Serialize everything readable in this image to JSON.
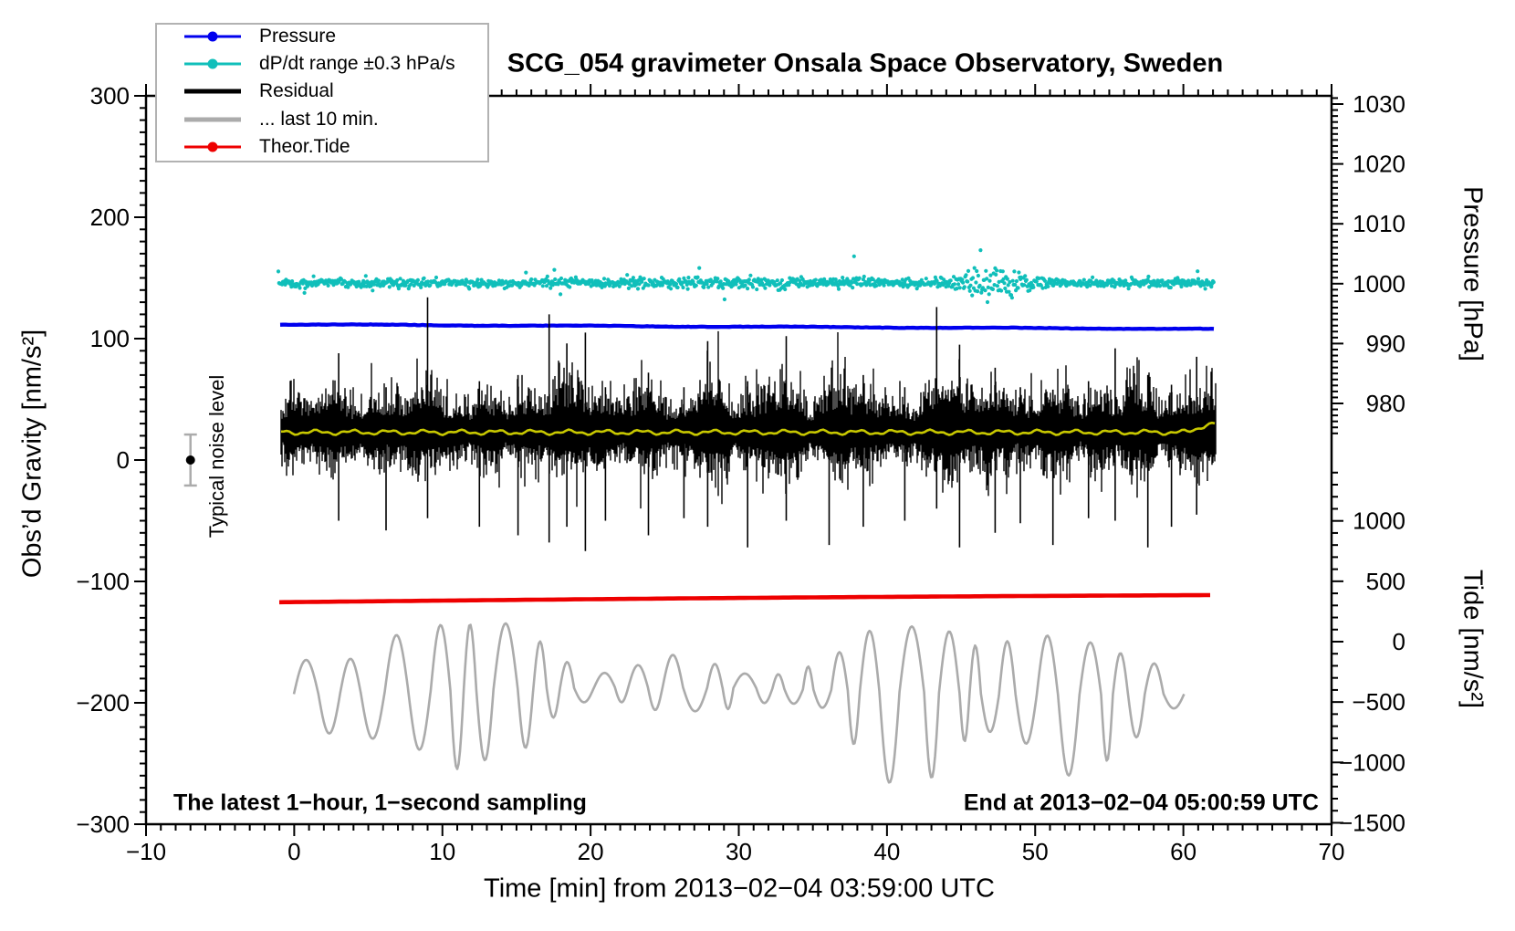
{
  "title": "SCG_054 gravimeter Onsala Space Observatory, Sweden",
  "notes": {
    "sampling": "The latest 1−hour, 1−second sampling",
    "end": "End at 2013−02−04 05:00:59 UTC",
    "noise": "Typical noise level"
  },
  "legend": {
    "items": [
      {
        "label": "Pressure",
        "color": "#0000EE",
        "marker": "line-dot"
      },
      {
        "label": "dP/dt range ±0.3 hPa/s",
        "color": "#10BFBA",
        "marker": "line-dot"
      },
      {
        "label": "Residual",
        "color": "#000000",
        "marker": "thick-line"
      },
      {
        "label": "... last 10 min.",
        "color": "#ABABAB",
        "marker": "thick-line"
      },
      {
        "label": "Theor.Tide",
        "color": "#EE0000",
        "marker": "line-dot"
      }
    ]
  },
  "chart_data": {
    "type": "line",
    "title": "SCG_054 gravimeter Onsala Space Observatory, Sweden",
    "x_axis": {
      "label": "Time [min] from 2013−02−04 03:59:00 UTC",
      "min": -10,
      "max": 70,
      "major_ticks": [
        -10,
        0,
        10,
        20,
        30,
        40,
        50,
        60,
        70
      ],
      "minor_step": 1
    },
    "left_axis": {
      "label": "Obs’d Gravity [nm/s²]",
      "min": -300,
      "max": 300,
      "major_ticks": [
        300,
        200,
        100,
        0,
        -100,
        -200,
        -300
      ],
      "minor_step": 10
    },
    "right_pressure_axis": {
      "label": "Pressure [hPa]",
      "major_ticks": [
        1030,
        1020,
        1010,
        1000,
        990,
        980
      ],
      "minor_step": 1
    },
    "right_tide_axis": {
      "label": "Tide [nm/s²]",
      "major_ticks": [
        1000,
        500,
        0,
        -500,
        -1000,
        -1500
      ],
      "minor_step": 100
    },
    "grid": false,
    "legend_position": "top-left",
    "series": [
      {
        "name": "Pressure",
        "axis": "pressure_hPa",
        "color": "#0000EE",
        "style": "line",
        "points": [
          {
            "t_min": 0,
            "hPa": 993.2
          },
          {
            "t_min": 31,
            "hPa": 992.9
          },
          {
            "t_min": 62,
            "hPa": 992.4
          }
        ]
      },
      {
        "name": "dP/dt range ±0.3 hPa/s",
        "axis": "pressure_hPa",
        "color": "#10BFBA",
        "style": "scatter",
        "center_hPa": 1000.1,
        "typical_spread_hPa": 0.4,
        "burst": {
          "t_min_range": [
            44.5,
            50.5
          ],
          "max_spread_hPa": 5
        },
        "t_range_min": [
          -1,
          62
        ]
      },
      {
        "name": "Residual",
        "axis": "gravity_nm_s2",
        "color": "#000000",
        "style": "noisy-line",
        "mean": 22,
        "typical_envelope": 45,
        "max": 130,
        "min": -92,
        "burst_times_min": [
          9,
          18.5,
          28,
          33,
          37,
          44,
          47.5,
          51,
          57,
          61
        ],
        "t_range_min": [
          -0.8,
          62
        ]
      },
      {
        "name": "Residual smoothed",
        "axis": "gravity_nm_s2",
        "color": "#C8C800",
        "style": "line",
        "mean": 22,
        "wiggle": 3,
        "t_range_min": [
          -0.8,
          62
        ]
      },
      {
        "name": "Residual ... last 10 min. (magnified)",
        "axis": "tide_nm_s2",
        "color": "#ABABAB",
        "style": "line",
        "center": -410,
        "amplitude_range": [
          200,
          600
        ],
        "extremes": {
          "max": 150,
          "min": -1170
        },
        "t_range_min": [
          0,
          60
        ]
      },
      {
        "name": "Theor.Tide",
        "axis": "tide_nm_s2",
        "color": "#EE0000",
        "style": "line",
        "points": [
          {
            "t_min": 0,
            "tide": 325
          },
          {
            "t_min": 62,
            "tide": 372
          }
        ]
      }
    ],
    "noise_marker": {
      "t_min": -7,
      "gravity": 0,
      "error_bar": 21
    }
  }
}
